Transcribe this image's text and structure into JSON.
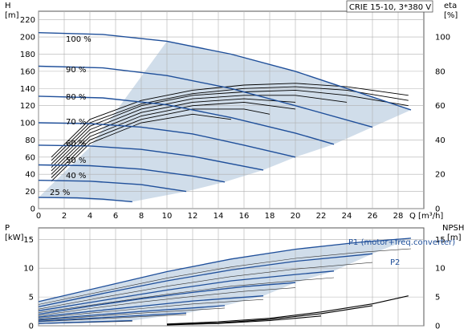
{
  "title_box": "CRIE 15-10, 3*380 V",
  "colors": {
    "curve": "#1f4f9a",
    "region": "#c8d7e6",
    "grid": "#b0b0b0",
    "eta": "#000000"
  },
  "chart_data": [
    {
      "type": "line",
      "panel": "head_and_efficiency",
      "xlabel": "Q [m³/h]",
      "ylabel_left": "H\n[m]",
      "ylabel_right": "eta\n[%]",
      "xlim": [
        0,
        30
      ],
      "ylim_left": [
        0,
        230
      ],
      "ylim_right": [
        0,
        115
      ],
      "x_ticks": [
        0,
        2,
        4,
        6,
        8,
        10,
        12,
        14,
        16,
        18,
        20,
        22,
        24,
        26,
        28
      ],
      "y_ticks_left": [
        0,
        20,
        40,
        60,
        80,
        100,
        120,
        140,
        160,
        180,
        200,
        220
      ],
      "y_ticks_right": [
        0,
        20,
        40,
        60,
        80,
        100
      ],
      "grid": true,
      "speed_labels": [
        "100 %",
        "90 %",
        "80 %",
        "70 %",
        "60 %",
        "50 %",
        "40 %",
        "25 %"
      ],
      "head_series": [
        {
          "speed": "100 %",
          "x": [
            0,
            5,
            10,
            15,
            20,
            25,
            29
          ],
          "y": [
            205,
            203,
            195,
            180,
            160,
            135,
            115
          ]
        },
        {
          "speed": "90 %",
          "x": [
            0,
            5,
            10,
            15,
            20,
            26
          ],
          "y": [
            166,
            164,
            155,
            140,
            120,
            95
          ]
        },
        {
          "speed": "80 %",
          "x": [
            0,
            5,
            10,
            15,
            20,
            23
          ],
          "y": [
            131,
            129,
            121,
            106,
            88,
            75
          ]
        },
        {
          "speed": "70 %",
          "x": [
            0,
            4,
            8,
            12,
            16,
            20
          ],
          "y": [
            100,
            99,
            95,
            87,
            74,
            60
          ]
        },
        {
          "speed": "60 %",
          "x": [
            0,
            4,
            8,
            12,
            17.5
          ],
          "y": [
            74,
            73,
            69,
            61,
            45
          ]
        },
        {
          "speed": "50 %",
          "x": [
            0,
            4,
            8,
            12,
            14.5
          ],
          "y": [
            51,
            50,
            46,
            38,
            31
          ]
        },
        {
          "speed": "40 %",
          "x": [
            0,
            4,
            8,
            11.5
          ],
          "y": [
            33,
            32,
            28,
            20
          ]
        },
        {
          "speed": "25 %",
          "x": [
            0,
            3,
            5,
            7.3
          ],
          "y": [
            13,
            12.5,
            11,
            8
          ]
        }
      ],
      "eta_series": [
        {
          "x": [
            1,
            4,
            8,
            12,
            16,
            20,
            24,
            28.8
          ],
          "y": [
            30,
            52,
            63,
            69,
            72,
            73,
            71,
            66
          ]
        },
        {
          "x": [
            1,
            4,
            8,
            12,
            16,
            20,
            24,
            28.8
          ],
          "y": [
            28,
            50,
            61,
            67,
            70,
            71,
            69,
            63
          ]
        },
        {
          "x": [
            1,
            4,
            8,
            12,
            16,
            20,
            24,
            28.8
          ],
          "y": [
            26,
            48,
            60,
            66,
            68,
            69,
            66,
            60
          ]
        },
        {
          "x": [
            1,
            4,
            8,
            12,
            16,
            20,
            24
          ],
          "y": [
            24,
            46,
            58,
            64,
            66,
            66,
            62
          ]
        },
        {
          "x": [
            1,
            4,
            8,
            12,
            16,
            20
          ],
          "y": [
            22,
            44,
            56,
            62,
            64,
            62
          ]
        },
        {
          "x": [
            1,
            4,
            8,
            12,
            16,
            20
          ],
          "y": [
            20,
            42,
            54,
            60,
            62,
            58
          ]
        },
        {
          "x": [
            1,
            4,
            8,
            12,
            16,
            18
          ],
          "y": [
            18,
            40,
            52,
            58,
            58,
            55
          ]
        },
        {
          "x": [
            1,
            4,
            8,
            12,
            15
          ],
          "y": [
            16,
            38,
            50,
            55,
            52
          ]
        }
      ]
    },
    {
      "type": "line",
      "panel": "power_and_npsh",
      "ylabel_left": "P\n[kW]",
      "ylabel_right": "NPSH\n[m]",
      "xlim": [
        0,
        30
      ],
      "ylim_left": [
        0,
        17
      ],
      "ylim_right": [
        0,
        17
      ],
      "y_ticks_left": [
        0,
        5,
        10,
        15
      ],
      "y_ticks_right": [
        0,
        5,
        10,
        15
      ],
      "grid": true,
      "series_labels": [
        "P1 (motor+freq.converter)",
        "P2"
      ],
      "p1_series": [
        {
          "x": [
            0,
            5,
            10,
            15,
            20,
            25,
            29
          ],
          "y": [
            4.2,
            6.8,
            9.4,
            11.6,
            13.3,
            14.5,
            15.2
          ]
        },
        {
          "x": [
            0,
            5,
            10,
            15,
            20,
            26
          ],
          "y": [
            3.3,
            5.6,
            7.8,
            9.7,
            11.2,
            12.5
          ]
        },
        {
          "x": [
            0,
            5,
            10,
            15,
            20,
            23
          ],
          "y": [
            2.6,
            4.4,
            6.2,
            7.8,
            8.9,
            9.5
          ]
        },
        {
          "x": [
            0,
            4,
            8,
            12,
            16,
            20
          ],
          "y": [
            2.0,
            3.4,
            4.7,
            5.8,
            6.8,
            7.5
          ]
        },
        {
          "x": [
            0,
            4,
            8,
            12,
            17.5
          ],
          "y": [
            1.5,
            2.5,
            3.4,
            4.3,
            5.2
          ]
        },
        {
          "x": [
            0,
            4,
            8,
            12,
            14.5
          ],
          "y": [
            1.1,
            1.8,
            2.5,
            3.1,
            3.5
          ]
        },
        {
          "x": [
            0,
            4,
            8,
            11.5
          ],
          "y": [
            0.8,
            1.3,
            1.8,
            2.2
          ]
        },
        {
          "x": [
            0,
            3,
            5,
            7.3
          ],
          "y": [
            0.4,
            0.6,
            0.75,
            0.9
          ]
        }
      ],
      "npsh_series": [
        {
          "x": [
            10,
            14,
            18,
            22,
            26,
            28.8
          ],
          "y": [
            0.3,
            0.7,
            1.3,
            2.4,
            3.8,
            5.2
          ]
        },
        {
          "x": [
            10,
            14,
            18,
            22,
            26
          ],
          "y": [
            0.2,
            0.5,
            1.1,
            2.1,
            3.5
          ]
        },
        {
          "x": [
            10,
            14,
            18,
            22
          ],
          "y": [
            0.15,
            0.4,
            0.9,
            1.7
          ]
        }
      ]
    }
  ]
}
